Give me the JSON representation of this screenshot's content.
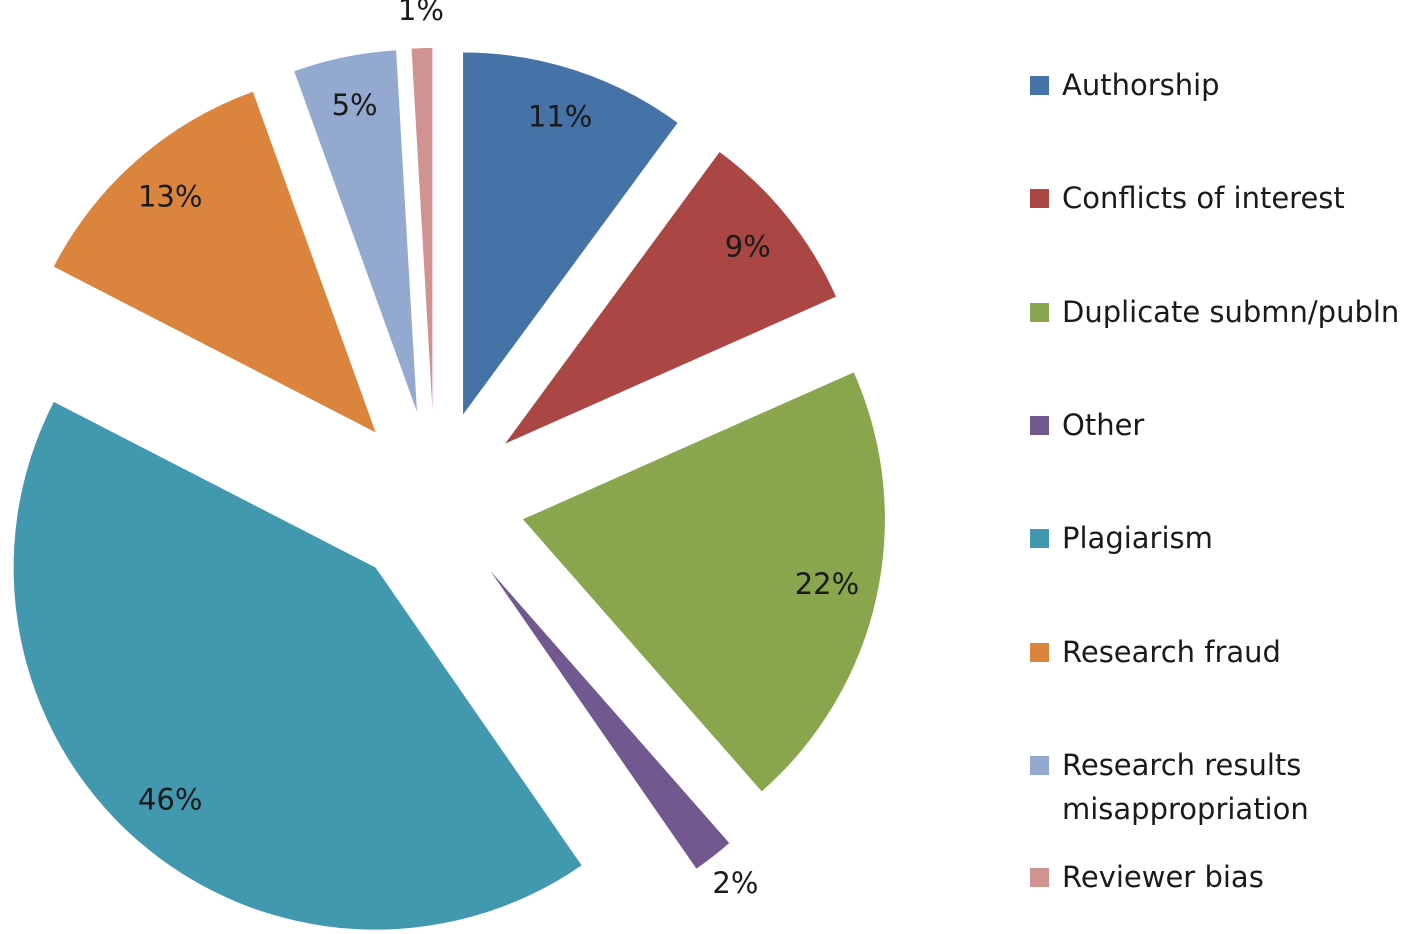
{
  "chart_data": {
    "type": "pie",
    "categories": [
      "Authorship",
      "Conflicts of interest",
      "Duplicate submn/publn",
      "Other",
      "Plagiarism",
      "Research fraud",
      "Research results misappropriation",
      "Reviewer bias"
    ],
    "values": [
      11,
      9,
      22,
      2,
      46,
      13,
      5,
      1
    ],
    "value_labels": [
      "11%",
      "9%",
      "22%",
      "2%",
      "46%",
      "13%",
      "5%",
      "1%"
    ],
    "colors": [
      "#4572a7",
      "#aa4643",
      "#89a54e",
      "#71588f",
      "#4198af",
      "#db843d",
      "#93a9cf",
      "#d19392"
    ],
    "legend": "right"
  }
}
